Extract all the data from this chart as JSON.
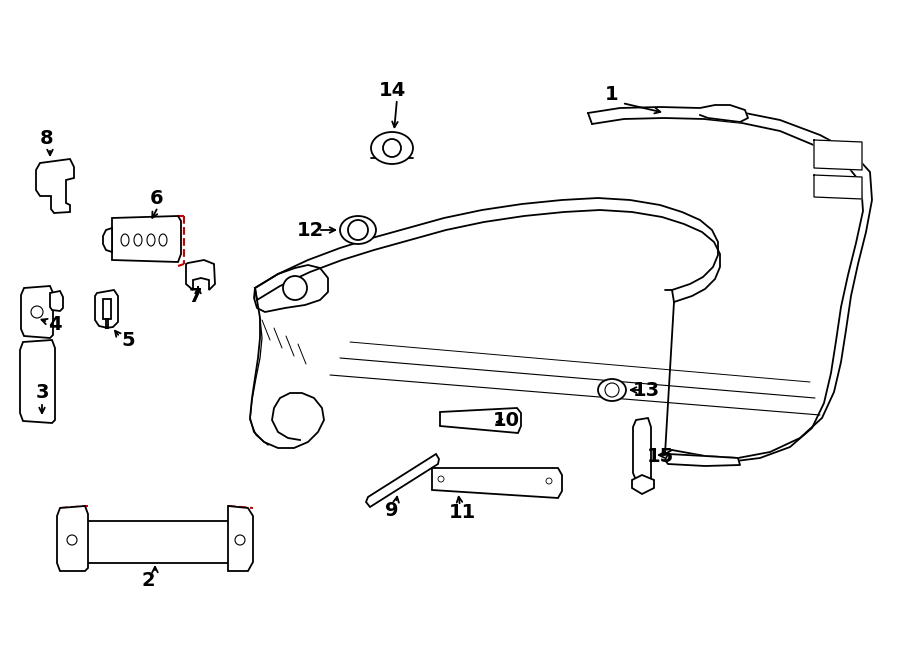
{
  "bg_color": "#ffffff",
  "line_color": "#000000",
  "red_color": "#cc0000",
  "lw": 1.3,
  "label_fs": 14
}
